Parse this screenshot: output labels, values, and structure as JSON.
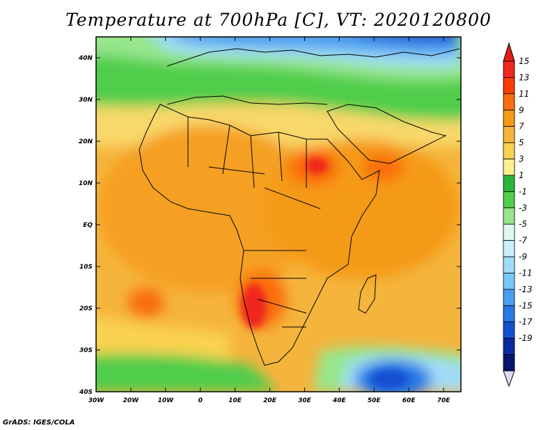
{
  "title": "Temperature at 700hPa [C], VT: 2020120800",
  "credit": "GrADS: IGES/COLA",
  "map": {
    "lon_range": [
      -30,
      75
    ],
    "lat_range": [
      -40,
      45
    ],
    "lon_ticks": [
      "30W",
      "20W",
      "10W",
      "0",
      "10E",
      "20E",
      "30E",
      "40E",
      "50E",
      "60E",
      "70E"
    ],
    "lat_ticks": [
      "40N",
      "30N",
      "20N",
      "10N",
      "EQ",
      "10S",
      "20S",
      "30S",
      "40S"
    ]
  },
  "colorbar": {
    "labels": [
      "15",
      "13",
      "11",
      "9",
      "7",
      "5",
      "3",
      "1",
      "-1",
      "-3",
      "-5",
      "-7",
      "-9",
      "-11",
      "-13",
      "-15",
      "-17",
      "-19"
    ],
    "colors": [
      "#f0281e",
      "#fa3c00",
      "#fa6e10",
      "#f59a14",
      "#f5b43c",
      "#fad250",
      "#faf08c",
      "#2cb43c",
      "#50cd4c",
      "#96e68c",
      "#e0f8ec",
      "#c8f0fa",
      "#a0dcf8",
      "#78c8f8",
      "#4a9ef0",
      "#2878e6",
      "#1450d2",
      "#0a28a0",
      "#06146e"
    ],
    "triangle_top_color": "#e01e14",
    "triangle_bottom_color": "#dcdcf8"
  }
}
